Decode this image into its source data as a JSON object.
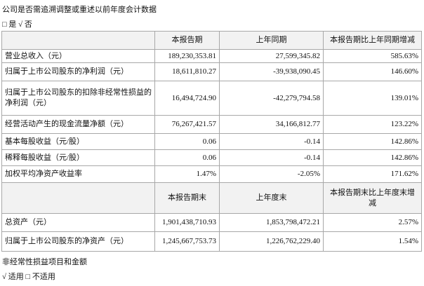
{
  "header": {
    "title": "公司是否需追溯调整或重述以前年度会计数据",
    "option": "□ 是 √ 否"
  },
  "table": {
    "header": [
      "本报告期",
      "上年同期",
      "本报告期比上年同期增减"
    ],
    "rows": [
      [
        "营业总收入（元）",
        "189,230,353.81",
        "27,599,345.82",
        "585.63%"
      ],
      [
        "归属于上市公司股东的净利润（元）",
        "18,611,810.27",
        "-39,938,090.45",
        "146.60%"
      ],
      [
        "归属于上市公司股东的扣除非经常性损益的净利润（元）",
        "16,494,724.90",
        "-42,279,794.58",
        "139.01%"
      ],
      [
        "经营活动产生的现金流量净额（元）",
        "76,267,421.57",
        "34,166,812.77",
        "123.22%"
      ],
      [
        "基本每股收益（元/股）",
        "0.06",
        "-0.14",
        "142.86%"
      ],
      [
        "稀释每股收益（元/股）",
        "0.06",
        "-0.14",
        "142.86%"
      ],
      [
        "加权平均净资产收益率",
        "1.47%",
        "-2.05%",
        "171.62%"
      ]
    ]
  },
  "table2": {
    "header": [
      "本报告期末",
      "上年度末",
      "本报告期末比上年度末增减"
    ],
    "rows": [
      [
        "总资产（元）",
        "1,901,438,710.93",
        "1,853,798,472.21",
        "2.57%"
      ],
      [
        "归属于上市公司股东的净资产（元）",
        "1,245,667,753.73",
        "1,226,762,229.40",
        "1.54%"
      ]
    ]
  },
  "footer": {
    "title": "非经常性损益项目和金额",
    "option": "√ 适用 □ 不适用"
  }
}
